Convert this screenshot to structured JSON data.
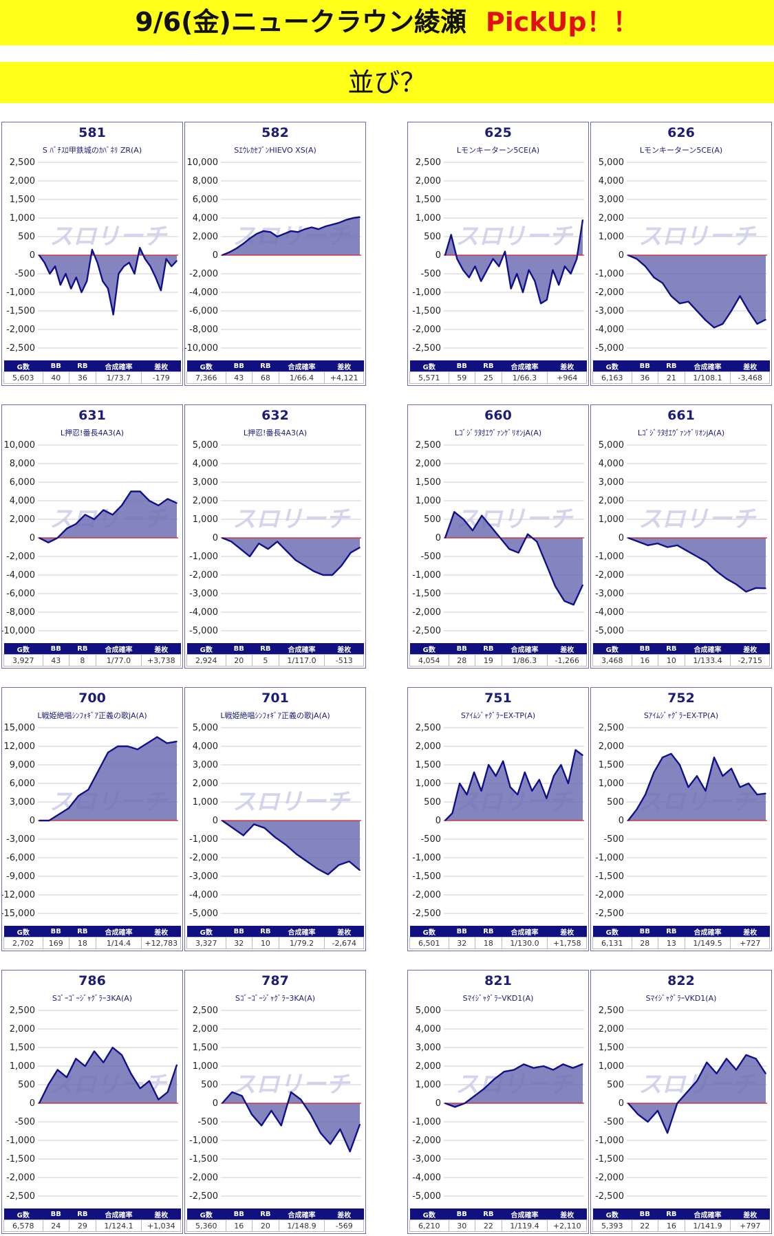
{
  "header": {
    "title": "9/6(金)ニュークラウン綾瀬",
    "pickup": "PickUp！！",
    "subtitle": "並び？"
  },
  "watermark": "スロリーチ",
  "colors": {
    "banner": "#ffff1a",
    "pickup": "#e01010",
    "line": "#10108a",
    "fill": "#6f6fb4",
    "zero": "#d02020",
    "header_bar": "#101080"
  },
  "stats_headers": [
    "G数",
    "BB",
    "RB",
    "合成確率",
    "差枚"
  ],
  "chart_data": [
    {
      "type": "area",
      "number": "581",
      "machine": "S ﾊﾞﾁｽﾛ甲鉄城のｶﾊﾞﾈﾘ ZR(A)",
      "yticks": [
        2500,
        2000,
        1500,
        1000,
        500,
        0,
        -500,
        -1000,
        -1500,
        -2000,
        -2500
      ],
      "ylim": [
        -2500,
        2500
      ],
      "y": [
        0,
        -200,
        -500,
        -300,
        -800,
        -500,
        -900,
        -600,
        -1000,
        -700,
        150,
        -200,
        -700,
        -900,
        -1600,
        -500,
        -300,
        -200,
        -500,
        200,
        -100,
        -300,
        -600,
        -950,
        -100,
        -300,
        -150
      ],
      "stats": {
        "g": "5,603",
        "bb": "40",
        "rb": "36",
        "prob": "1/73.7",
        "diff": "-179"
      }
    },
    {
      "type": "area",
      "number": "582",
      "machine": "SｴｳﾚｶｾﾌﾞﾝHIEVO XS(A)",
      "yticks": [
        10000,
        8000,
        6000,
        4000,
        2000,
        0,
        -2000,
        -4000,
        -6000,
        -8000,
        -10000
      ],
      "ylim": [
        -10000,
        10000
      ],
      "y": [
        0,
        300,
        700,
        1200,
        1800,
        2300,
        2600,
        2500,
        2000,
        2300,
        2600,
        2500,
        2800,
        3000,
        2800,
        3100,
        3300,
        3500,
        3800,
        4000,
        4100
      ],
      "stats": {
        "g": "7,366",
        "bb": "43",
        "rb": "68",
        "prob": "1/66.4",
        "diff": "+4,121"
      }
    },
    {
      "type": "area",
      "number": "625",
      "machine": "Lモンキーターン5CE(A)",
      "yticks": [
        2500,
        2000,
        1500,
        1000,
        500,
        0,
        -500,
        -1000,
        -1500,
        -2000,
        -2500
      ],
      "ylim": [
        -2500,
        2500
      ],
      "y": [
        0,
        550,
        -100,
        -400,
        -600,
        -300,
        -700,
        -400,
        -100,
        -300,
        100,
        -900,
        -500,
        -1000,
        -400,
        -700,
        -1300,
        -1200,
        -400,
        -800,
        -300,
        -500,
        -100,
        950
      ],
      "stats": {
        "g": "5,571",
        "bb": "59",
        "rb": "25",
        "prob": "1/66.3",
        "diff": "+964"
      }
    },
    {
      "type": "area",
      "number": "626",
      "machine": "Lモンキーターン5CE(A)",
      "yticks": [
        5000,
        4000,
        3000,
        2000,
        1000,
        0,
        -1000,
        -2000,
        -3000,
        -4000,
        -5000
      ],
      "ylim": [
        -5000,
        5000
      ],
      "y": [
        0,
        -200,
        -600,
        -1200,
        -1500,
        -2200,
        -2600,
        -2500,
        -3000,
        -3500,
        -3900,
        -3700,
        -3000,
        -2200,
        -3000,
        -3700,
        -3468
      ],
      "stats": {
        "g": "6,163",
        "bb": "36",
        "rb": "21",
        "prob": "1/108.1",
        "diff": "-3,468"
      }
    },
    {
      "type": "area",
      "number": "631",
      "machine": "L押忍!番長4A3(A)",
      "yticks": [
        10000,
        8000,
        6000,
        4000,
        2000,
        0,
        -2000,
        -4000,
        -6000,
        -8000,
        -10000
      ],
      "ylim": [
        -10000,
        10000
      ],
      "y": [
        0,
        -500,
        0,
        1000,
        1500,
        2500,
        2000,
        3000,
        2500,
        3500,
        5000,
        5000,
        4000,
        3500,
        4200,
        3738
      ],
      "stats": {
        "g": "3,927",
        "bb": "43",
        "rb": "8",
        "prob": "1/77.0",
        "diff": "+3,738"
      }
    },
    {
      "type": "area",
      "number": "632",
      "machine": "L押忍!番長4A3(A)",
      "yticks": [
        5000,
        4000,
        3000,
        2000,
        1000,
        0,
        -1000,
        -2000,
        -3000,
        -4000,
        -5000
      ],
      "ylim": [
        -5000,
        5000
      ],
      "y": [
        0,
        -200,
        -600,
        -1000,
        -300,
        -600,
        -200,
        -700,
        -1200,
        -1500,
        -1800,
        -2000,
        -2000,
        -1500,
        -800,
        -513
      ],
      "stats": {
        "g": "2,924",
        "bb": "20",
        "rb": "5",
        "prob": "1/117.0",
        "diff": "-513"
      }
    },
    {
      "type": "area",
      "number": "660",
      "machine": "Lｺﾞｼﾞﾗ対ｴｳﾞｧﾝｹﾞﾘｵﾝjA(A)",
      "yticks": [
        2500,
        2000,
        1500,
        1000,
        500,
        0,
        -500,
        -1000,
        -1500,
        -2000,
        -2500
      ],
      "ylim": [
        -2500,
        2500
      ],
      "y": [
        0,
        700,
        500,
        200,
        600,
        300,
        0,
        -300,
        -400,
        100,
        -100,
        -700,
        -1300,
        -1700,
        -1800,
        -1266
      ],
      "stats": {
        "g": "4,054",
        "bb": "28",
        "rb": "19",
        "prob": "1/86.3",
        "diff": "-1,266"
      }
    },
    {
      "type": "area",
      "number": "661",
      "machine": "Lｺﾞｼﾞﾗ対ｴｳﾞｧﾝｹﾞﾘｵﾝjA(A)",
      "yticks": [
        5000,
        4000,
        3000,
        2000,
        1000,
        0,
        -1000,
        -2000,
        -3000,
        -4000,
        -5000
      ],
      "ylim": [
        -5000,
        5000
      ],
      "y": [
        0,
        -200,
        -400,
        -300,
        -500,
        -400,
        -700,
        -1000,
        -1300,
        -1800,
        -2200,
        -2500,
        -2900,
        -2700,
        -2715
      ],
      "stats": {
        "g": "3,468",
        "bb": "16",
        "rb": "10",
        "prob": "1/133.4",
        "diff": "-2,715"
      }
    },
    {
      "type": "area",
      "number": "700",
      "machine": "L戦姫絶唱ｼﾝﾌｫｷﾞｱ正義の歌jA(A)",
      "yticks": [
        15000,
        12000,
        9000,
        6000,
        3000,
        0,
        -3000,
        -6000,
        -9000,
        -12000,
        -15000
      ],
      "ylim": [
        -15000,
        15000
      ],
      "y": [
        0,
        0,
        1000,
        2000,
        4000,
        5000,
        8000,
        11000,
        12000,
        12000,
        11500,
        12500,
        13500,
        12500,
        12783
      ],
      "stats": {
        "g": "2,702",
        "bb": "169",
        "rb": "18",
        "prob": "1/14.4",
        "diff": "+12,783"
      }
    },
    {
      "type": "area",
      "number": "701",
      "machine": "L戦姫絶唱ｼﾝﾌｫｷﾞｱ正義の歌jA(A)",
      "yticks": [
        5000,
        4000,
        3000,
        2000,
        1000,
        0,
        -1000,
        -2000,
        -3000,
        -4000,
        -5000
      ],
      "ylim": [
        -5000,
        5000
      ],
      "y": [
        0,
        -400,
        -800,
        -200,
        -400,
        -900,
        -1300,
        -1800,
        -2200,
        -2600,
        -2900,
        -2400,
        -2200,
        -2674
      ],
      "stats": {
        "g": "3,327",
        "bb": "32",
        "rb": "10",
        "prob": "1/79.2",
        "diff": "-2,674"
      }
    },
    {
      "type": "area",
      "number": "751",
      "machine": "SｱｲﾑｼﾞｬｸﾞﾗｰEX-TP(A)",
      "yticks": [
        2500,
        2000,
        1500,
        1000,
        500,
        0,
        -500,
        -1000,
        -1500,
        -2000,
        -2500
      ],
      "ylim": [
        -2500,
        2500
      ],
      "y": [
        0,
        200,
        1000,
        700,
        1300,
        800,
        1500,
        1200,
        1600,
        900,
        700,
        1300,
        800,
        1100,
        600,
        1200,
        1500,
        1000,
        1900,
        1758
      ],
      "stats": {
        "g": "6,501",
        "bb": "32",
        "rb": "18",
        "prob": "1/130.0",
        "diff": "+1,758"
      }
    },
    {
      "type": "area",
      "number": "752",
      "machine": "SｱｲﾑｼﾞｬｸﾞﾗｰEX-TP(A)",
      "yticks": [
        2500,
        2000,
        1500,
        1000,
        500,
        0,
        -500,
        -1000,
        -1500,
        -2000,
        -2500
      ],
      "ylim": [
        -2500,
        2500
      ],
      "y": [
        0,
        300,
        700,
        1300,
        1700,
        1800,
        1500,
        900,
        1200,
        800,
        1700,
        1200,
        1400,
        900,
        1000,
        700,
        727
      ],
      "stats": {
        "g": "6,131",
        "bb": "28",
        "rb": "13",
        "prob": "1/149.5",
        "diff": "+727"
      }
    },
    {
      "type": "area",
      "number": "786",
      "machine": "Sｺﾞｰｺﾞｰｼﾞｬｸﾞﾗｰ3KA(A)",
      "yticks": [
        2500,
        2000,
        1500,
        1000,
        500,
        0,
        -500,
        -1000,
        -1500,
        -2000,
        -2500
      ],
      "ylim": [
        -2500,
        2500
      ],
      "y": [
        0,
        500,
        900,
        700,
        1200,
        1000,
        1400,
        1100,
        1500,
        1300,
        800,
        400,
        600,
        100,
        300,
        1034
      ],
      "stats": {
        "g": "6,578",
        "bb": "24",
        "rb": "29",
        "prob": "1/124.1",
        "diff": "+1,034"
      }
    },
    {
      "type": "area",
      "number": "787",
      "machine": "Sｺﾞｰｺﾞｰｼﾞｬｸﾞﾗｰ3KA(A)",
      "yticks": [
        2500,
        2000,
        1500,
        1000,
        500,
        0,
        -500,
        -1000,
        -1500,
        -2000,
        -2500
      ],
      "ylim": [
        -2500,
        2500
      ],
      "y": [
        0,
        300,
        200,
        -300,
        -600,
        -200,
        -600,
        300,
        100,
        -300,
        -800,
        -1100,
        -700,
        -1300,
        -569
      ],
      "stats": {
        "g": "5,360",
        "bb": "16",
        "rb": "20",
        "prob": "1/148.9",
        "diff": "-569"
      }
    },
    {
      "type": "area",
      "number": "821",
      "machine": "SﾏｲｼﾞｬｸﾞﾗｰVKD1(A)",
      "yticks": [
        5000,
        4000,
        3000,
        2000,
        1000,
        0,
        -1000,
        -2000,
        -3000,
        -4000,
        -5000
      ],
      "ylim": [
        -5000,
        5000
      ],
      "y": [
        0,
        -200,
        0,
        400,
        800,
        1300,
        1700,
        1800,
        2100,
        1900,
        2000,
        1800,
        2100,
        1900,
        2110
      ],
      "stats": {
        "g": "6,210",
        "bb": "30",
        "rb": "22",
        "prob": "1/119.4",
        "diff": "+2,110"
      }
    },
    {
      "type": "area",
      "number": "822",
      "machine": "SﾏｲｼﾞｬｸﾞﾗｰVKD1(A)",
      "yticks": [
        2500,
        2000,
        1500,
        1000,
        500,
        0,
        -500,
        -1000,
        -1500,
        -2000,
        -2500
      ],
      "ylim": [
        -2500,
        2500
      ],
      "y": [
        0,
        -300,
        -500,
        -200,
        -800,
        0,
        300,
        600,
        1100,
        800,
        1200,
        900,
        1300,
        1200,
        797
      ],
      "stats": {
        "g": "5,393",
        "bb": "22",
        "rb": "16",
        "prob": "1/141.9",
        "diff": "+797"
      }
    }
  ]
}
